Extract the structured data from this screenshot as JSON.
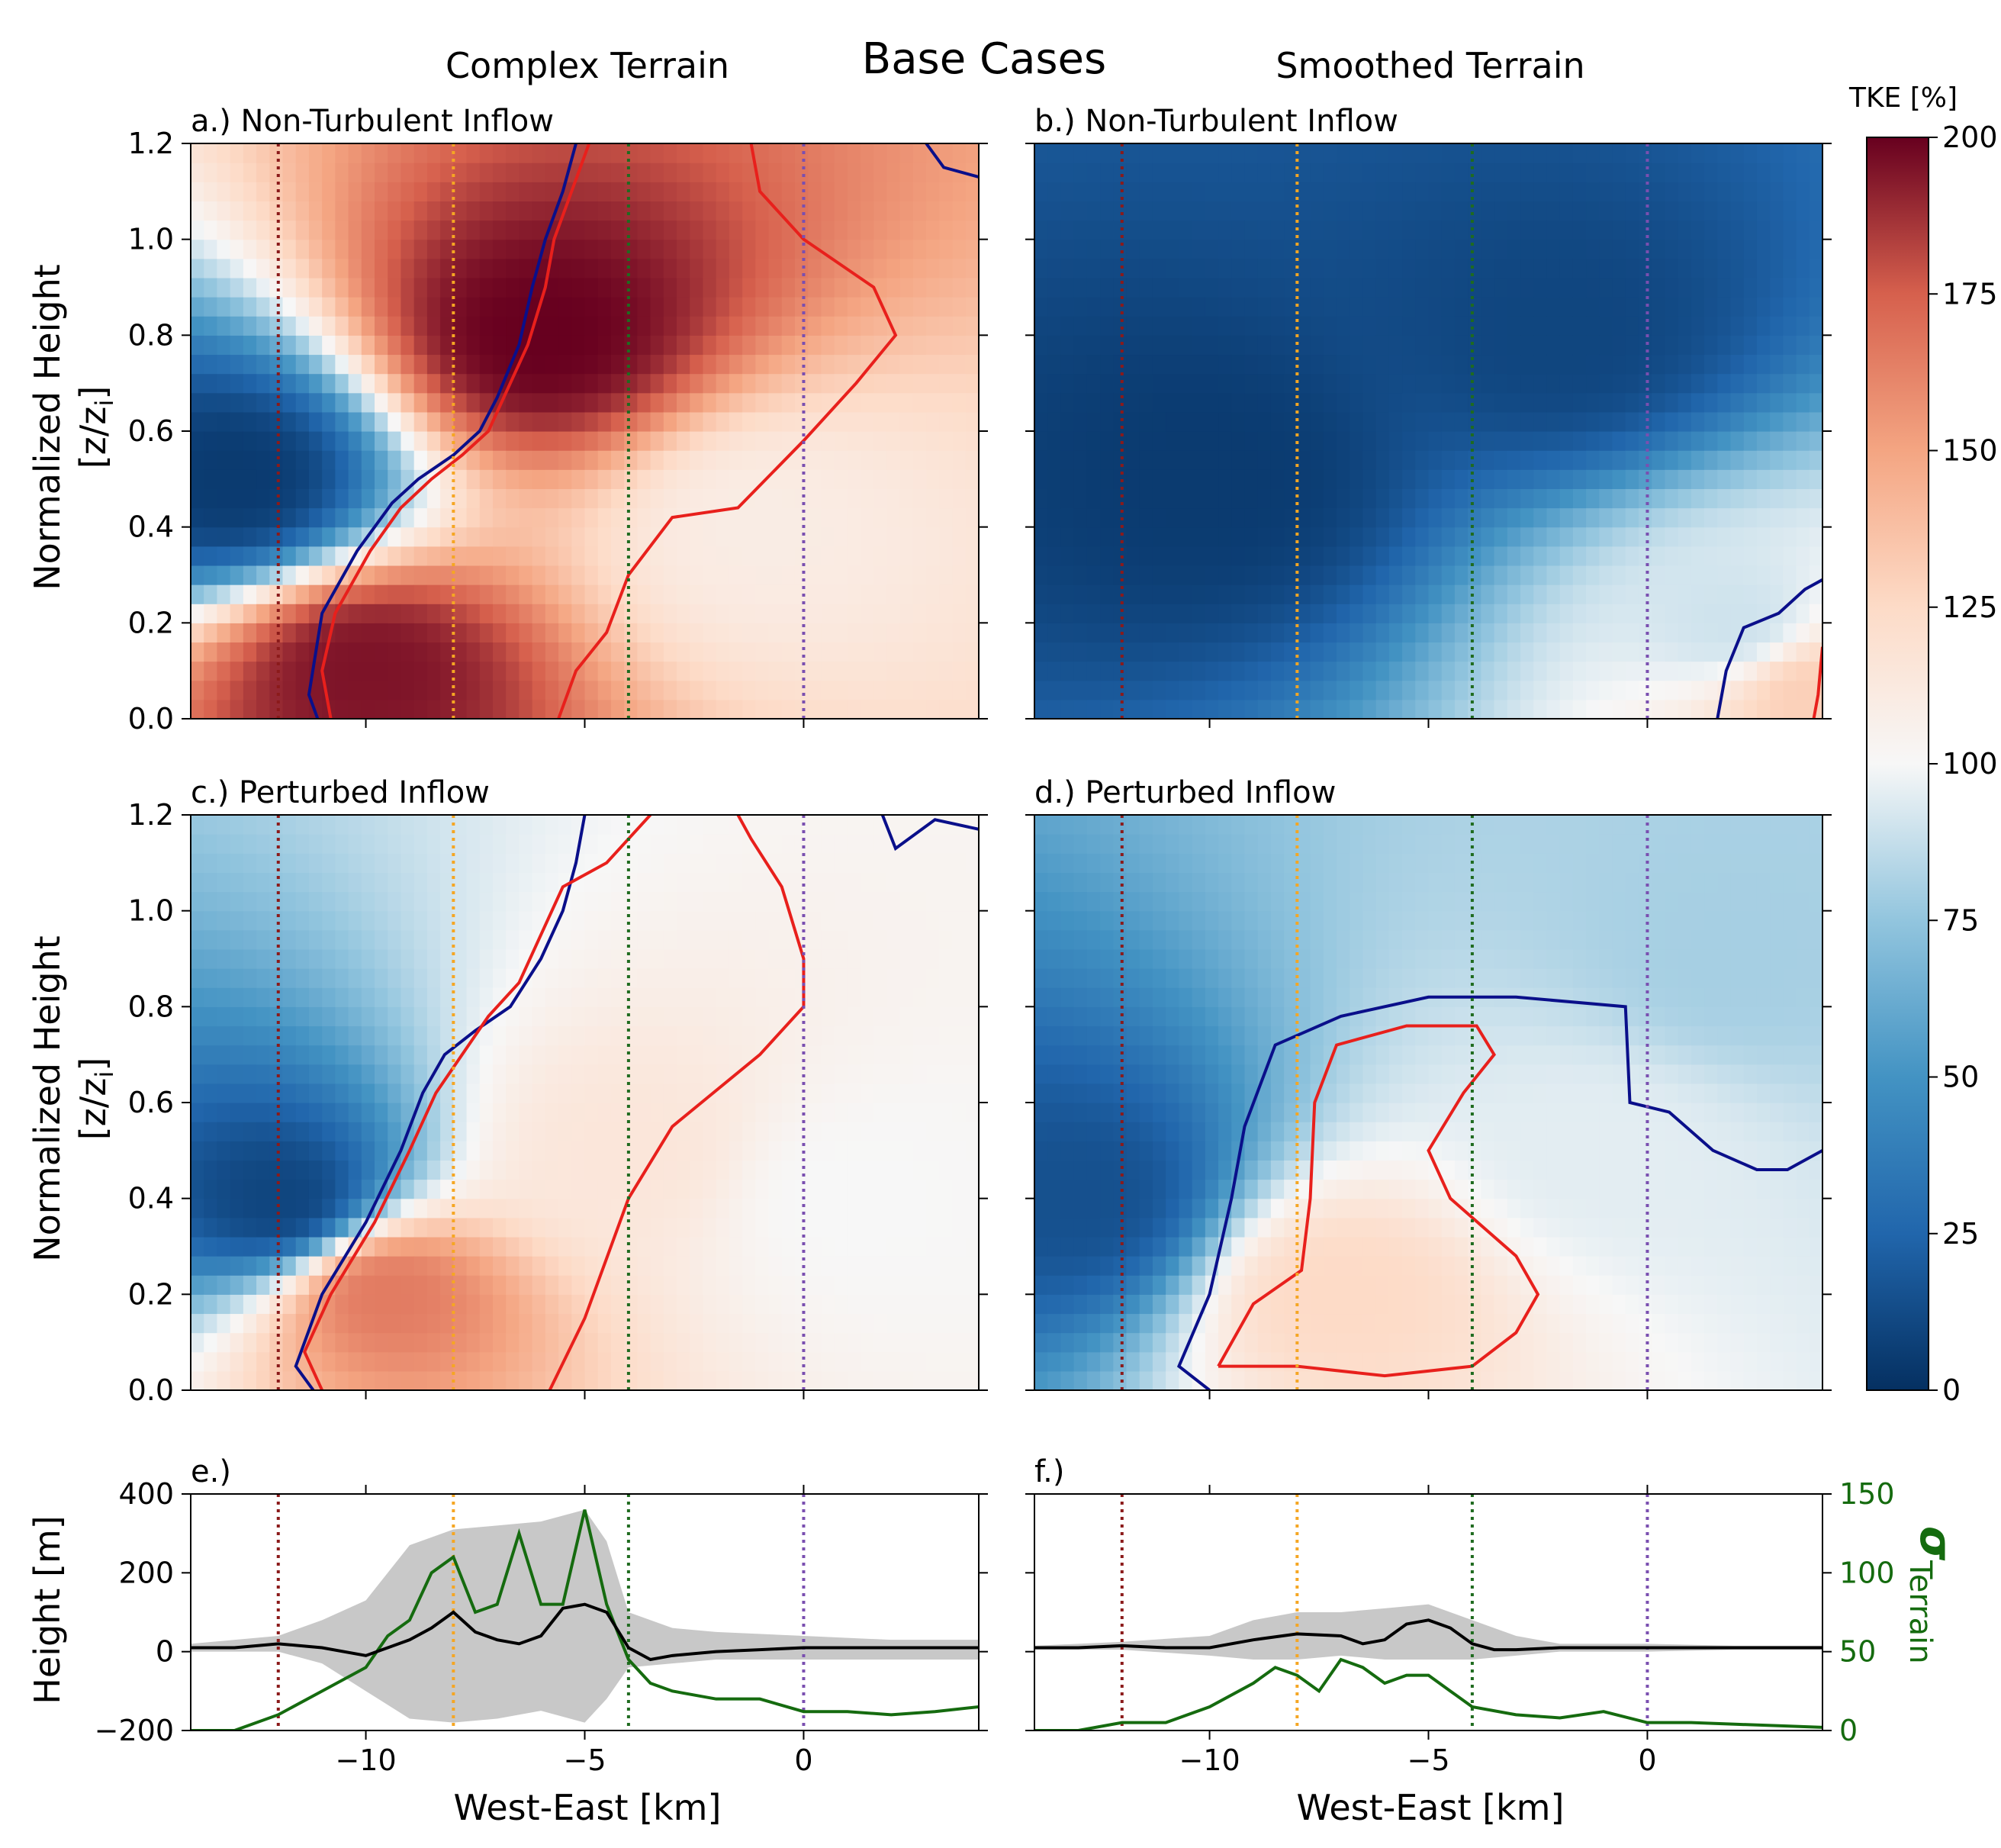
{
  "figure": {
    "suptitle": "Base Cases",
    "col_titles": [
      "Complex Terrain",
      "Smoothed Terrain"
    ],
    "colorbar_label": "TKE [%]",
    "colorbar_ticks": [
      "0",
      "25",
      "50",
      "75",
      "100",
      "125",
      "150",
      "175",
      "200"
    ],
    "ylabel_main": "Normalized Height",
    "ylabel_units": "[z/z",
    "ylabel_units_sub": "i",
    "ylabel_units_close": "]",
    "ylabel_terrain": "Height [m]",
    "y2label_sigma": "σ",
    "y2label_sigma_sub": "Terrain",
    "xlabel": "West-East [km]",
    "colormap": "RdBu_r",
    "contour_colors": {
      "low": "#0a0f8a",
      "high": "#e8201c"
    },
    "vline_colors": [
      "#8b1a1a",
      "#f5a623",
      "#1f6b1f",
      "#7a4fb0"
    ],
    "terrain_line_color": "#000000",
    "sigma_line_color": "#156b0f",
    "band_color": "#c8c8c8"
  },
  "chart_data": [
    {
      "type": "heatmap",
      "panel_label": "a.) Non-Turbulent Inflow",
      "xlabel": "",
      "ylabel": "Normalized Height [z/zi]",
      "xlim": [
        -14,
        4
      ],
      "ylim": [
        0.0,
        1.2
      ],
      "y_ticks": [
        "0.0",
        "0.2",
        "0.4",
        "0.6",
        "0.8",
        "1.0",
        "1.2"
      ],
      "x_ticks": [
        -10,
        -5,
        0
      ],
      "vlines_x": [
        -12,
        -8,
        -4,
        0
      ],
      "field_description_points": [
        [
          -13,
          0.5,
          5
        ],
        [
          -10,
          0.1,
          195
        ],
        [
          -6,
          0.8,
          200
        ],
        [
          -1,
          0.4,
          110
        ]
      ],
      "contour_low": [
        [
          -11.1,
          0.0
        ],
        [
          -11.3,
          0.05
        ],
        [
          -11.0,
          0.22
        ],
        [
          -10.2,
          0.35
        ],
        [
          -9.4,
          0.45
        ],
        [
          -8.8,
          0.5
        ],
        [
          -8.0,
          0.55
        ],
        [
          -7.4,
          0.6
        ],
        [
          -7.0,
          0.67
        ],
        [
          -6.5,
          0.78
        ],
        [
          -6.2,
          0.9
        ],
        [
          -5.9,
          1.0
        ],
        [
          -5.5,
          1.1
        ],
        [
          -5.2,
          1.2
        ]
      ],
      "contour_high": [
        [
          -10.8,
          0.0
        ],
        [
          -11.0,
          0.1
        ],
        [
          -10.7,
          0.22
        ],
        [
          -9.9,
          0.35
        ],
        [
          -9.2,
          0.44
        ],
        [
          -8.5,
          0.5
        ],
        [
          -7.8,
          0.55
        ],
        [
          -7.2,
          0.6
        ],
        [
          -6.8,
          0.68
        ],
        [
          -6.3,
          0.78
        ],
        [
          -5.9,
          0.9
        ],
        [
          -5.7,
          1.0
        ],
        [
          -5.3,
          1.1
        ],
        [
          -4.9,
          1.2
        ]
      ],
      "contour_high_outer": [
        [
          -5.6,
          0.0
        ],
        [
          -5.2,
          0.1
        ],
        [
          -4.5,
          0.18
        ],
        [
          -4.0,
          0.3
        ],
        [
          -3.0,
          0.42
        ],
        [
          -1.5,
          0.44
        ],
        [
          0.0,
          0.58
        ],
        [
          1.2,
          0.7
        ],
        [
          2.1,
          0.8
        ],
        [
          1.6,
          0.9
        ],
        [
          0.0,
          1.0
        ],
        [
          -1.0,
          1.1
        ],
        [
          -1.2,
          1.2
        ]
      ],
      "contour_low_right": [
        [
          2.8,
          1.2
        ],
        [
          3.2,
          1.15
        ],
        [
          4.0,
          1.13
        ]
      ]
    },
    {
      "type": "heatmap",
      "panel_label": "b.) Non-Turbulent Inflow",
      "xlim": [
        -14,
        4
      ],
      "ylim": [
        0.0,
        1.2
      ],
      "x_ticks": [
        -10,
        -5,
        0
      ],
      "vlines_x": [
        -12,
        -8,
        -4,
        0
      ],
      "field_description_points": [
        [
          -10,
          0.5,
          5
        ],
        [
          -2,
          0.8,
          10
        ],
        [
          2,
          0.2,
          90
        ],
        [
          3.8,
          0.05,
          130
        ]
      ],
      "contour_low": [
        [
          1.6,
          0.0
        ],
        [
          1.8,
          0.1
        ],
        [
          2.2,
          0.19
        ],
        [
          3.0,
          0.22
        ],
        [
          3.6,
          0.27
        ],
        [
          4.0,
          0.29
        ]
      ],
      "contour_high": [
        [
          3.8,
          0.0
        ],
        [
          3.9,
          0.05
        ],
        [
          4.0,
          0.15
        ]
      ]
    },
    {
      "type": "heatmap",
      "panel_label": "c.) Perturbed Inflow",
      "xlim": [
        -14,
        4
      ],
      "ylim": [
        0.0,
        1.2
      ],
      "y_ticks": [
        "0.0",
        "0.2",
        "0.4",
        "0.6",
        "0.8",
        "1.0",
        "1.2"
      ],
      "x_ticks": [
        -10,
        -5,
        0
      ],
      "vlines_x": [
        -12,
        -8,
        -4,
        0
      ],
      "field_description_points": [
        [
          -12,
          0.4,
          10
        ],
        [
          -9.5,
          0.2,
          165
        ],
        [
          -4,
          0.5,
          115
        ],
        [
          1,
          0.4,
          100
        ]
      ],
      "contour_low": [
        [
          -11.2,
          0.0
        ],
        [
          -11.6,
          0.05
        ],
        [
          -11.0,
          0.2
        ],
        [
          -10.0,
          0.35
        ],
        [
          -9.2,
          0.5
        ],
        [
          -8.7,
          0.62
        ],
        [
          -8.2,
          0.7
        ],
        [
          -7.5,
          0.75
        ],
        [
          -6.7,
          0.8
        ],
        [
          -6.0,
          0.9
        ],
        [
          -5.5,
          1.0
        ],
        [
          -5.2,
          1.1
        ],
        [
          -5.0,
          1.2
        ]
      ],
      "contour_high": [
        [
          -11.0,
          0.0
        ],
        [
          -11.4,
          0.08
        ],
        [
          -10.8,
          0.2
        ],
        [
          -9.8,
          0.35
        ],
        [
          -9.0,
          0.5
        ],
        [
          -8.4,
          0.62
        ],
        [
          -7.8,
          0.7
        ],
        [
          -7.2,
          0.78
        ],
        [
          -6.5,
          0.85
        ],
        [
          -6.0,
          0.95
        ],
        [
          -5.5,
          1.05
        ],
        [
          -4.5,
          1.1
        ],
        [
          -3.5,
          1.2
        ]
      ],
      "contour_high_outer": [
        [
          -5.8,
          0.0
        ],
        [
          -5.0,
          0.15
        ],
        [
          -4.0,
          0.4
        ],
        [
          -3.0,
          0.55
        ],
        [
          -1.0,
          0.7
        ],
        [
          0.0,
          0.8
        ],
        [
          0.0,
          0.9
        ],
        [
          -0.5,
          1.05
        ],
        [
          -1.2,
          1.15
        ],
        [
          -1.5,
          1.2
        ]
      ],
      "contour_low_right": [
        [
          1.8,
          1.2
        ],
        [
          2.1,
          1.13
        ],
        [
          3.0,
          1.19
        ],
        [
          4.0,
          1.17
        ]
      ]
    },
    {
      "type": "heatmap",
      "panel_label": "d.) Perturbed Inflow",
      "xlim": [
        -14,
        4
      ],
      "ylim": [
        0.0,
        1.2
      ],
      "x_ticks": [
        -10,
        -5,
        0
      ],
      "vlines_x": [
        -12,
        -8,
        -4,
        0
      ],
      "field_description_points": [
        [
          -13,
          0.4,
          15
        ],
        [
          -7,
          0.2,
          125
        ],
        [
          -1,
          0.5,
          95
        ],
        [
          2,
          0.9,
          80
        ]
      ],
      "contour_low": [
        [
          -10.0,
          0.0
        ],
        [
          -10.7,
          0.05
        ],
        [
          -10.0,
          0.2
        ],
        [
          -9.5,
          0.4
        ],
        [
          -9.2,
          0.55
        ],
        [
          -8.5,
          0.72
        ],
        [
          -7.0,
          0.78
        ],
        [
          -5.0,
          0.82
        ],
        [
          -3.0,
          0.82
        ],
        [
          -0.5,
          0.8
        ],
        [
          -0.4,
          0.6
        ],
        [
          0.5,
          0.58
        ],
        [
          1.5,
          0.5
        ],
        [
          2.5,
          0.46
        ],
        [
          3.2,
          0.46
        ],
        [
          4.0,
          0.5
        ]
      ],
      "contour_high": [
        [
          -9.8,
          0.05
        ],
        [
          -9.0,
          0.18
        ],
        [
          -7.9,
          0.25
        ],
        [
          -7.7,
          0.4
        ],
        [
          -7.6,
          0.6
        ],
        [
          -7.1,
          0.72
        ],
        [
          -5.5,
          0.76
        ],
        [
          -3.9,
          0.76
        ],
        [
          -3.5,
          0.7
        ],
        [
          -4.2,
          0.62
        ],
        [
          -5.0,
          0.5
        ],
        [
          -4.5,
          0.4
        ],
        [
          -3.0,
          0.28
        ],
        [
          -2.5,
          0.2
        ],
        [
          -3.0,
          0.12
        ],
        [
          -4.0,
          0.05
        ],
        [
          -6.0,
          0.03
        ],
        [
          -8.0,
          0.05
        ],
        [
          -9.8,
          0.05
        ]
      ]
    },
    {
      "type": "line",
      "panel_label": "e.)",
      "xlim": [
        -14,
        4
      ],
      "ylim": [
        -200,
        400
      ],
      "y2lim": [
        0,
        150
      ],
      "y_ticks": [
        "−200",
        "0",
        "200",
        "400"
      ],
      "y2_ticks": [
        "0",
        "50",
        "100",
        "150"
      ],
      "x_ticks": [
        "−10",
        "−5",
        "0"
      ],
      "x_tick_values": [
        -10,
        -5,
        0
      ],
      "vlines_x": [
        -12,
        -8,
        -4,
        0
      ],
      "series": [
        {
          "role": "terrain_mean",
          "axis": "y",
          "x": [
            -14,
            -13,
            -12,
            -11,
            -10,
            -9,
            -8.5,
            -8,
            -7.5,
            -7,
            -6.5,
            -6,
            -5.5,
            -5,
            -4.5,
            -4,
            -3.5,
            -3,
            -2,
            -1,
            0,
            1,
            2,
            3,
            4
          ],
          "y": [
            10,
            10,
            20,
            10,
            -10,
            30,
            60,
            100,
            50,
            30,
            20,
            40,
            110,
            120,
            100,
            10,
            -20,
            -10,
            0,
            5,
            10,
            10,
            10,
            10,
            10
          ]
        },
        {
          "role": "terrain_spread",
          "axis": "y",
          "x": [
            -14,
            -12,
            -11,
            -10,
            -9,
            -8,
            -7,
            -6,
            -5,
            -4.5,
            -4,
            -3,
            -2,
            0,
            2,
            4
          ],
          "upper": [
            20,
            40,
            80,
            130,
            270,
            310,
            320,
            330,
            360,
            280,
            100,
            60,
            50,
            40,
            30,
            30
          ],
          "lower": [
            0,
            0,
            -30,
            -100,
            -170,
            -180,
            -170,
            -150,
            -180,
            -120,
            -40,
            -30,
            -20,
            -20,
            -20,
            -20
          ]
        },
        {
          "role": "sigma_terrain",
          "axis": "y2",
          "x": [
            -14,
            -13,
            -12,
            -11,
            -10,
            -9.5,
            -9,
            -8.5,
            -8,
            -7.5,
            -7,
            -6.5,
            -6,
            -5.5,
            -5,
            -4.5,
            -4,
            -3.5,
            -3,
            -2,
            -1,
            0,
            1,
            2,
            3,
            4
          ],
          "y": [
            0,
            0,
            10,
            25,
            40,
            60,
            70,
            100,
            110,
            75,
            80,
            125,
            80,
            80,
            140,
            80,
            45,
            30,
            25,
            20,
            20,
            12,
            12,
            10,
            12,
            15
          ]
        }
      ]
    },
    {
      "type": "line",
      "panel_label": "f.)",
      "xlim": [
        -14,
        4
      ],
      "ylim": [
        -200,
        400
      ],
      "y2lim": [
        0,
        150
      ],
      "y2_ticks": [
        "0",
        "50",
        "100",
        "150"
      ],
      "x_ticks": [
        "−10",
        "−5",
        "0"
      ],
      "x_tick_values": [
        -10,
        -5,
        0
      ],
      "vlines_x": [
        -12,
        -8,
        -4,
        0
      ],
      "series": [
        {
          "role": "terrain_mean",
          "axis": "y",
          "x": [
            -14,
            -13,
            -12,
            -11,
            -10,
            -9,
            -8,
            -7,
            -6.5,
            -6,
            -5.5,
            -5,
            -4.5,
            -4,
            -3.5,
            -3,
            -2,
            -1,
            0,
            1,
            2,
            3,
            4
          ],
          "y": [
            10,
            10,
            15,
            10,
            10,
            30,
            45,
            40,
            20,
            30,
            70,
            80,
            60,
            20,
            5,
            5,
            10,
            10,
            10,
            10,
            10,
            10,
            10
          ]
        },
        {
          "role": "terrain_spread",
          "axis": "y",
          "x": [
            -14,
            -12,
            -10,
            -9,
            -8,
            -7,
            -6,
            -5,
            -4,
            -3,
            -2,
            0,
            2,
            4
          ],
          "upper": [
            15,
            25,
            40,
            80,
            100,
            100,
            110,
            120,
            80,
            40,
            20,
            20,
            15,
            15
          ],
          "lower": [
            5,
            5,
            -10,
            -20,
            -20,
            -10,
            -20,
            -20,
            -20,
            -10,
            0,
            0,
            5,
            5
          ]
        },
        {
          "role": "sigma_terrain",
          "axis": "y2",
          "x": [
            -14,
            -13,
            -12,
            -11,
            -10,
            -9,
            -8.5,
            -8,
            -7.5,
            -7,
            -6.5,
            -6,
            -5.5,
            -5,
            -4.5,
            -4,
            -3,
            -2,
            -1,
            0,
            1,
            2,
            3,
            4
          ],
          "y": [
            0,
            0,
            5,
            5,
            15,
            30,
            40,
            35,
            25,
            45,
            40,
            30,
            35,
            35,
            25,
            15,
            10,
            8,
            12,
            5,
            5,
            4,
            3,
            2
          ]
        }
      ]
    }
  ]
}
